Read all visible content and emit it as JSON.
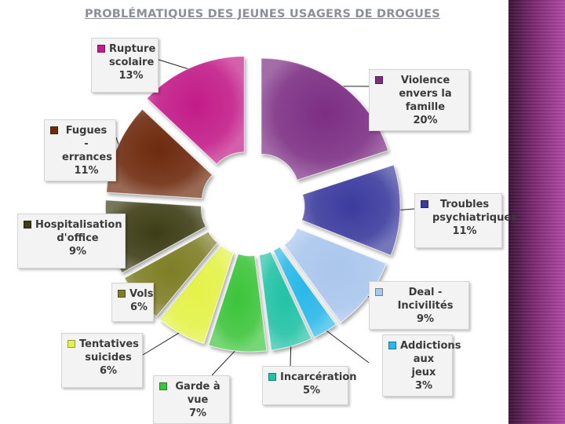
{
  "chart_data": {
    "type": "pie",
    "title": "PROBLÉMATIQUES DES JEUNES USAGERS DE DROGUES",
    "slices": [
      {
        "label": "Violence envers la famille",
        "value": 20,
        "display": "20%",
        "color": "#7b2d83"
      },
      {
        "label": "Troubles psychiatriques",
        "value": 11,
        "display": "11%",
        "color": "#3b3b9e"
      },
      {
        "label": "Deal - Incivilités",
        "value": 9,
        "display": "9%",
        "color": "#a9c6ec"
      },
      {
        "label": "Addictions aux jeux",
        "value": 3,
        "display": "3%",
        "color": "#29b8e8"
      },
      {
        "label": "Incarcération",
        "value": 5,
        "display": "5%",
        "color": "#23c2a6"
      },
      {
        "label": "Garde à vue",
        "value": 7,
        "display": "7%",
        "color": "#3ec43a"
      },
      {
        "label": "Tentatives suicides",
        "value": 6,
        "display": "6%",
        "color": "#e4f24a"
      },
      {
        "label": "Vols",
        "value": 6,
        "display": "6%",
        "color": "#7e7e28"
      },
      {
        "label": "Hospitalisation d'office",
        "value": 9,
        "display": "9%",
        "color": "#3d3d16"
      },
      {
        "label": "Fugues - errances",
        "value": 11,
        "display": "11%",
        "color": "#6e2c0e"
      },
      {
        "label": "Rupture scolaire",
        "value": 13,
        "display": "13%",
        "color": "#c21f88"
      }
    ],
    "legend": "callouts"
  }
}
